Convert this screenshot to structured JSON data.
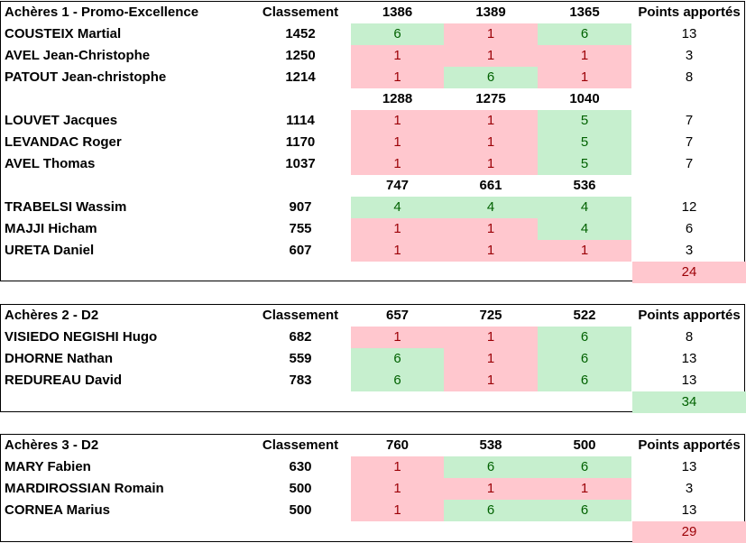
{
  "blocks": [
    {
      "title": "Achères 1 - Promo-Excellence",
      "rank_header": "Classement",
      "points_header": "Points apportés",
      "groups": [
        {
          "opponents": [
            "1386",
            "1389",
            "1365"
          ],
          "players": [
            {
              "name": "COUSTEIX Martial",
              "rank": "1452",
              "results": [
                "6",
                "1",
                "6"
              ],
              "points": "13"
            },
            {
              "name": "AVEL Jean-Christophe",
              "rank": "1250",
              "results": [
                "1",
                "1",
                "1"
              ],
              "points": "3"
            },
            {
              "name": "PATOUT Jean-christophe",
              "rank": "1214",
              "results": [
                "1",
                "6",
                "1"
              ],
              "points": "8"
            }
          ]
        },
        {
          "opponents": [
            "1288",
            "1275",
            "1040"
          ],
          "players": [
            {
              "name": "LOUVET Jacques",
              "rank": "1114",
              "results": [
                "1",
                "1",
                "5"
              ],
              "points": "7"
            },
            {
              "name": "LEVANDAC Roger",
              "rank": "1170",
              "results": [
                "1",
                "1",
                "5"
              ],
              "points": "7"
            },
            {
              "name": "AVEL Thomas",
              "rank": "1037",
              "results": [
                "1",
                "1",
                "5"
              ],
              "points": "7"
            }
          ]
        },
        {
          "opponents": [
            "747",
            "661",
            "536"
          ],
          "players": [
            {
              "name": "TRABELSI Wassim",
              "rank": "907",
              "results": [
                "4",
                "4",
                "4"
              ],
              "points": "12"
            },
            {
              "name": "MAJJI Hicham",
              "rank": "755",
              "results": [
                "1",
                "1",
                "4"
              ],
              "points": "6"
            },
            {
              "name": "URETA Daniel",
              "rank": "607",
              "results": [
                "1",
                "1",
                "1"
              ],
              "points": "3"
            }
          ]
        }
      ],
      "total": "24",
      "total_color": "#ffc7ce"
    },
    {
      "title": "Achères 2 - D2",
      "rank_header": "Classement",
      "points_header": "Points apportés",
      "groups": [
        {
          "opponents": [
            "657",
            "725",
            "522"
          ],
          "players": [
            {
              "name": "VISIEDO NEGISHI Hugo",
              "rank": "682",
              "results": [
                "1",
                "1",
                "6"
              ],
              "points": "8"
            },
            {
              "name": "DHORNE Nathan",
              "rank": "559",
              "results": [
                "6",
                "1",
                "6"
              ],
              "points": "13"
            },
            {
              "name": "REDUREAU David",
              "rank": "783",
              "results": [
                "6",
                "1",
                "6"
              ],
              "points": "13"
            }
          ]
        }
      ],
      "total": "34",
      "total_color": "#c6efce"
    },
    {
      "title": "Achères 3 - D2",
      "rank_header": "Classement",
      "points_header": "Points apportés",
      "groups": [
        {
          "opponents": [
            "760",
            "538",
            "500"
          ],
          "players": [
            {
              "name": "MARY Fabien",
              "rank": "630",
              "results": [
                "1",
                "6",
                "6"
              ],
              "points": "13"
            },
            {
              "name": "MARDIROSSIAN Romain",
              "rank": "500",
              "results": [
                "1",
                "1",
                "1"
              ],
              "points": "3"
            },
            {
              "name": "CORNEA Marius",
              "rank": "500",
              "results": [
                "1",
                "6",
                "6"
              ],
              "points": "13"
            }
          ]
        }
      ],
      "total": "29",
      "total_color": "#ffc7ce"
    }
  ],
  "colors": {
    "win_fill": "#c6efce",
    "win_text": "#006100",
    "loss_fill": "#ffc7ce",
    "loss_text": "#9c0006"
  }
}
